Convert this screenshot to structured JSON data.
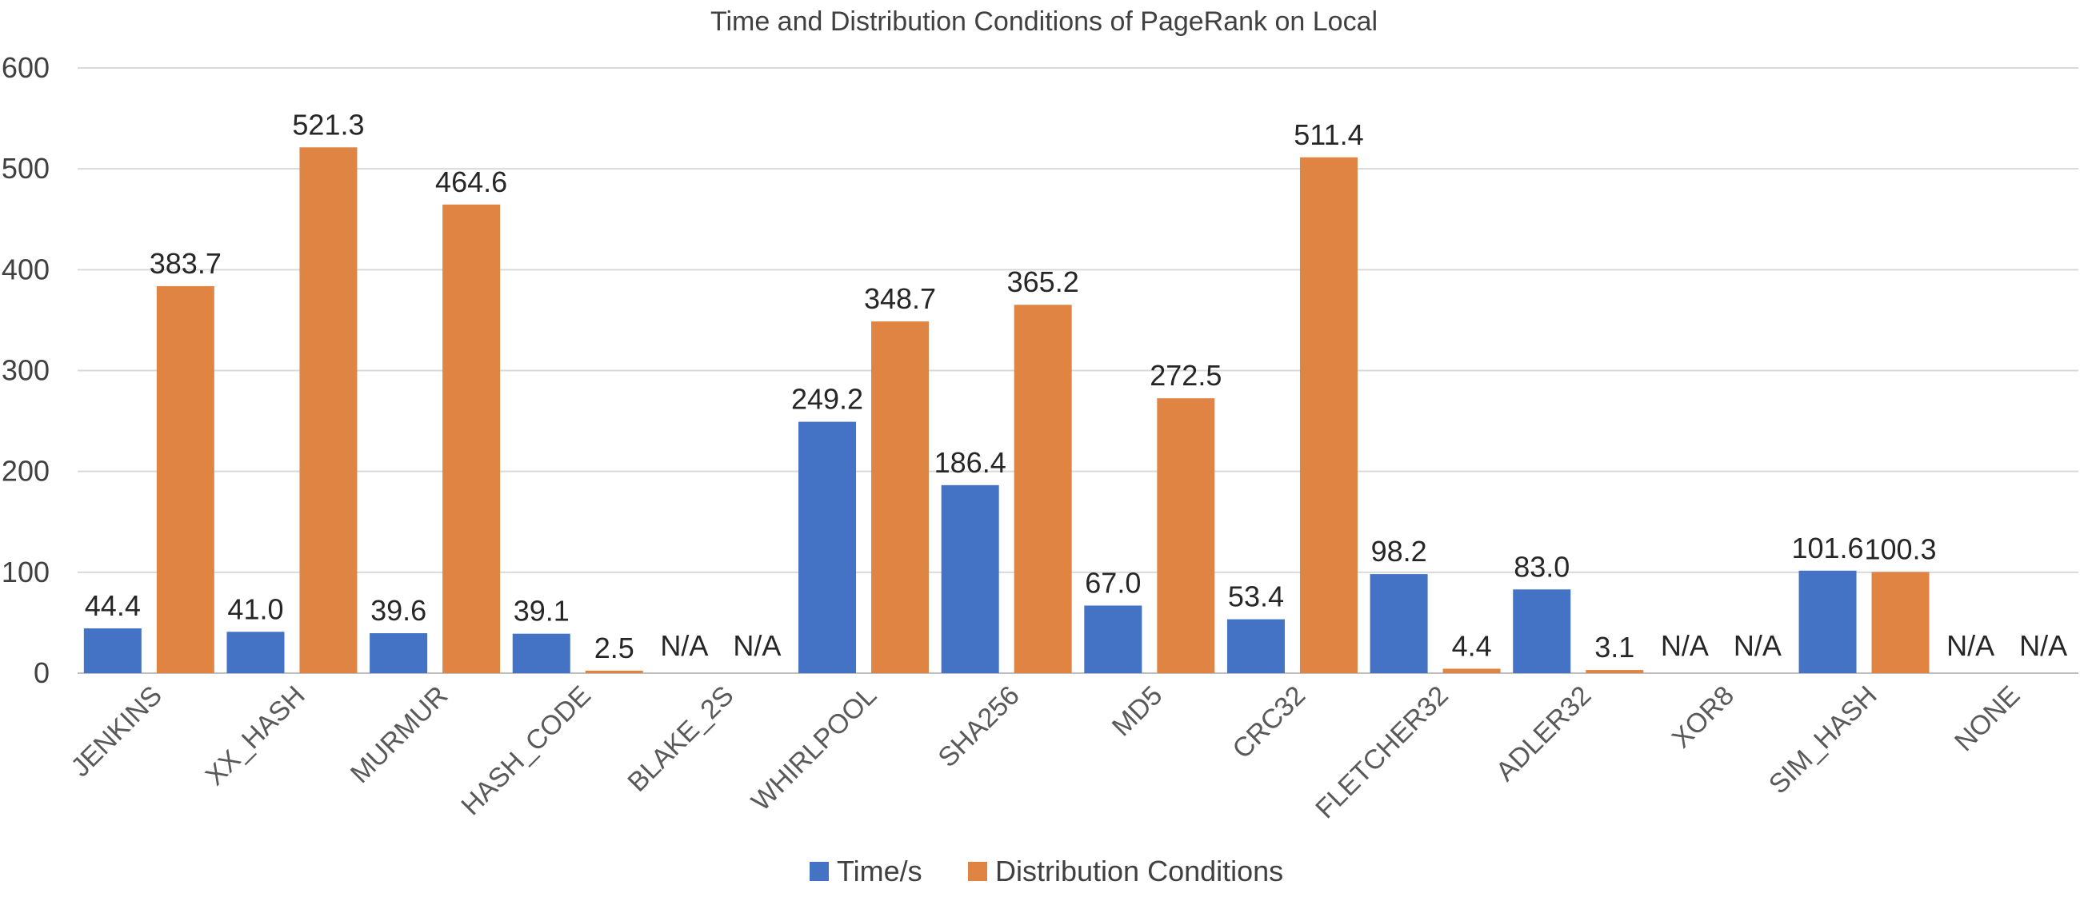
{
  "chart_data": {
    "type": "bar",
    "title": "Time and Distribution Conditions of PageRank on Local",
    "categories": [
      "JENKINS",
      "XX_HASH",
      "MURMUR",
      "HASH_CODE",
      "BLAKE_2S",
      "WHIRLPOOL",
      "SHA256",
      "MD5",
      "CRC32",
      "FLETCHER32",
      "ADLER32",
      "XOR8",
      "SIM_HASH",
      "NONE"
    ],
    "series": [
      {
        "name": "Time/s",
        "color": "#4472C4",
        "values": [
          44.4,
          41.0,
          39.6,
          39.1,
          null,
          249.2,
          186.4,
          67.0,
          53.4,
          98.2,
          83.0,
          null,
          101.6,
          null
        ],
        "labels": [
          "44.4",
          "41.0",
          "39.6",
          "39.1",
          "N/A",
          "249.2",
          "186.4",
          "67.0",
          "53.4",
          "98.2",
          "83.0",
          "N/A",
          "101.6",
          "N/A"
        ]
      },
      {
        "name": "Distribution Conditions",
        "color": "#E08443",
        "values": [
          383.7,
          521.3,
          464.6,
          2.5,
          null,
          348.7,
          365.2,
          272.5,
          511.4,
          4.4,
          3.1,
          null,
          100.3,
          null
        ],
        "labels": [
          "383.7",
          "521.3",
          "464.6",
          "2.5",
          "N/A",
          "348.7",
          "365.2",
          "272.5",
          "511.4",
          "4.4",
          "3.1",
          "N/A",
          "100.3",
          "N/A"
        ]
      }
    ],
    "ylim": [
      0,
      600
    ],
    "yticks": [
      "0",
      "100",
      "200",
      "300",
      "400",
      "500",
      "600"
    ],
    "grid": true,
    "legend_position": "bottom"
  }
}
